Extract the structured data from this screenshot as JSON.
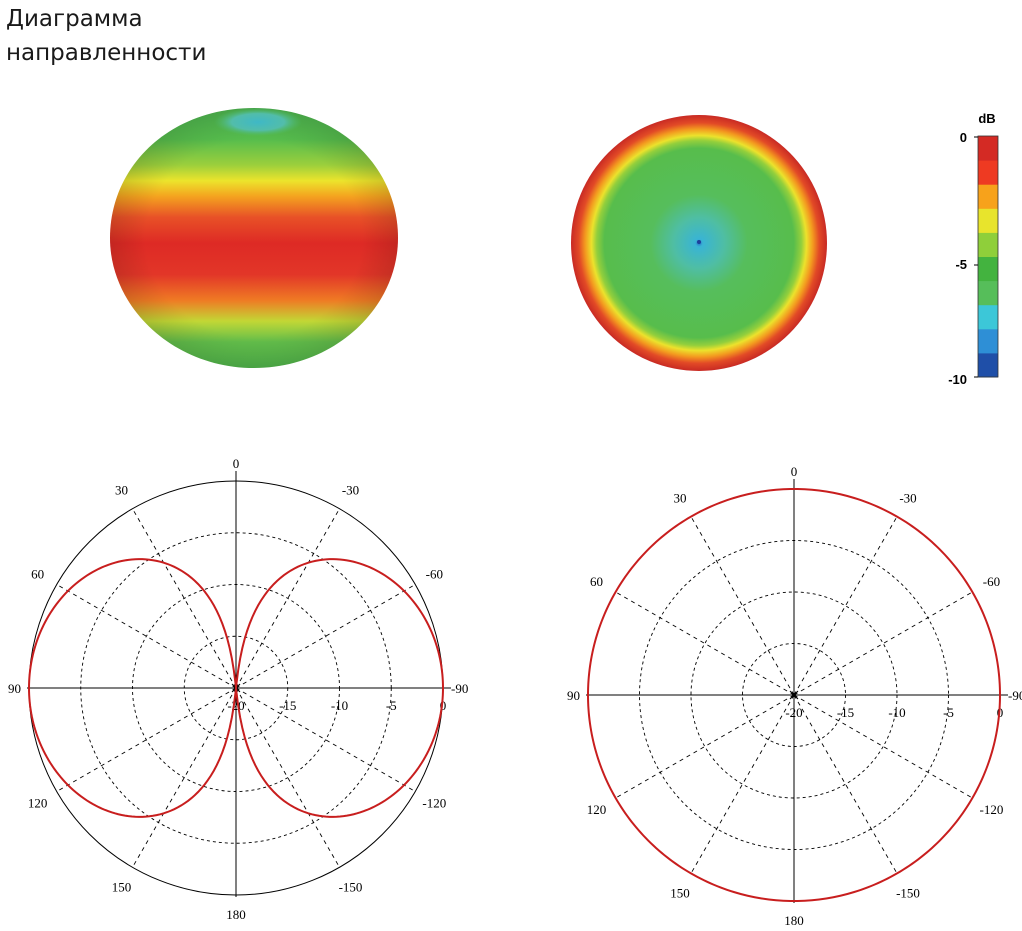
{
  "title": "Диаграмма направленности",
  "colorbar": {
    "unit": "dB",
    "tick_labels": [
      "0",
      "-5",
      "-10"
    ],
    "range": [
      -10,
      0
    ],
    "colors": [
      "#1f4fa8",
      "#2e8fd6",
      "#3cc7d8",
      "#56be5a",
      "#43b33f",
      "#8fcf3a",
      "#e8e42c",
      "#f7a21b",
      "#ee3a22",
      "#d42a24"
    ]
  },
  "chart_data": [
    {
      "type": "surface3d",
      "name": "pattern-3d-sphere",
      "scale": "dB",
      "range": [
        -10,
        0
      ],
      "view": "side"
    },
    {
      "type": "heatmap",
      "name": "pattern-top-view",
      "scale": "dB",
      "range": [
        -10,
        0
      ],
      "view": "top"
    },
    {
      "type": "polar",
      "name": "elevation-pattern",
      "angle_labels": [
        "0",
        "30",
        "-30",
        "60",
        "-60",
        "90",
        "-90",
        "120",
        "-120",
        "150",
        "-150",
        "180"
      ],
      "radial_labels": [
        "-20",
        "-15",
        "-10",
        "-5",
        "0"
      ],
      "r_range": [
        -20,
        0
      ],
      "series": [
        {
          "color": "#c81e1e",
          "formula": "20*log10(|sin(theta)|)",
          "theta_deg": [
            0,
            30,
            60,
            90,
            120,
            150,
            180
          ],
          "gain_db": [
            -20,
            -6,
            -1.2,
            0,
            -1.2,
            -6,
            -20
          ]
        }
      ]
    },
    {
      "type": "polar",
      "name": "azimuth-pattern",
      "angle_labels": [
        "0",
        "30",
        "-30",
        "60",
        "-60",
        "90",
        "-90",
        "120",
        "-120",
        "150",
        "-150",
        "180"
      ],
      "radial_labels": [
        "-20",
        "-15",
        "-10",
        "-5",
        "0"
      ],
      "r_range": [
        -20,
        0
      ],
      "series": [
        {
          "color": "#c81e1e",
          "formula": "constant",
          "theta_deg": [
            0,
            90,
            180,
            270
          ],
          "gain_db": [
            0,
            0,
            0,
            0
          ]
        }
      ]
    }
  ]
}
